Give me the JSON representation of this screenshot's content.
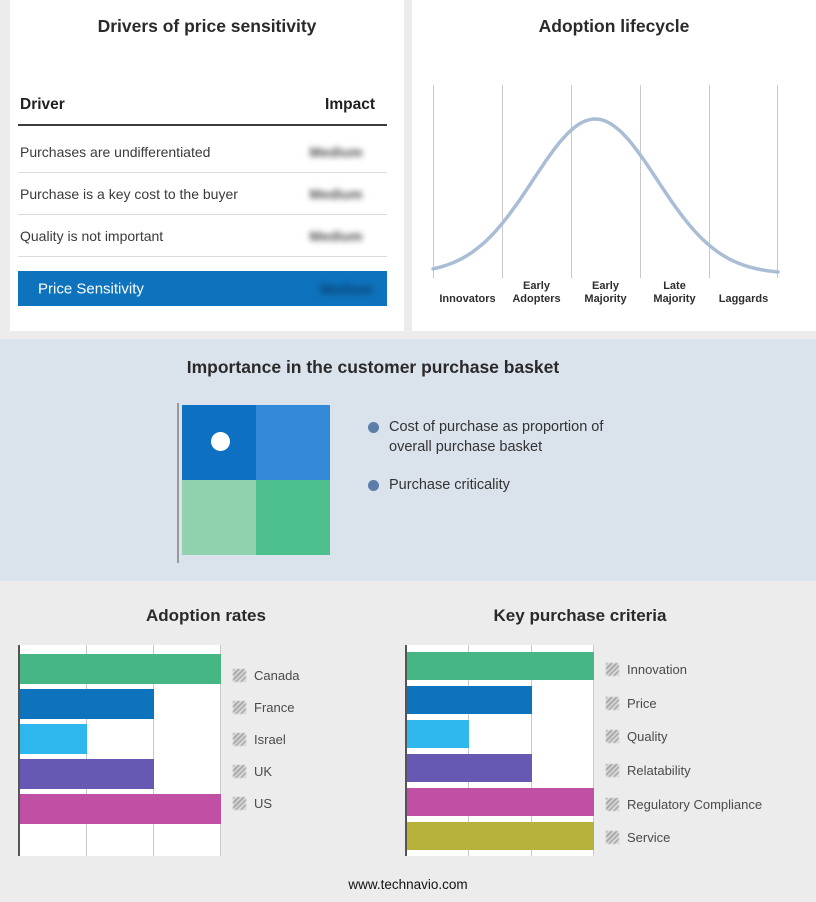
{
  "page": {
    "footer": "www.technavio.com",
    "background_color": "#ececec",
    "band_color": "#dae2ec"
  },
  "basket": {
    "title": "Importance in the customer purchase basket",
    "bullets": [
      "Cost of purchase as proportion of overall purchase basket",
      "Purchase criticality"
    ],
    "quadrant_colors": [
      "#0d70c2",
      "#3189d8",
      "#8fd2ad",
      "#4ec08d"
    ],
    "dot_color": "#ffffff",
    "bullet_color": "#5b7da9"
  },
  "chart_data": [
    {
      "type": "table",
      "title": "Drivers of price sensitivity",
      "columns": [
        "Driver",
        "Impact"
      ],
      "rows": [
        [
          "Purchases are undifferentiated",
          "Medium"
        ],
        [
          "Purchase is a key cost to the buyer",
          "Medium"
        ],
        [
          "Quality is not important",
          "Medium"
        ]
      ],
      "highlight_row": [
        "Price Sensitivity",
        "Medium"
      ],
      "highlight_color": "#0e73bd",
      "impact_values_blurred": true
    },
    {
      "type": "area",
      "title": "Adoption lifecycle",
      "categories": [
        "Innovators",
        "Early Adopters",
        "Early Majority",
        "Late Majority",
        "Laggards"
      ],
      "peak_category": "Early Majority",
      "curve": {
        "shape": "bell",
        "center": 0.47,
        "sigma": 0.18,
        "color": "#a9bdd5"
      },
      "grid": "vertical lines at category boundaries"
    },
    {
      "type": "bar",
      "title": "Adoption rates",
      "orientation": "horizontal",
      "categories": [
        "Canada",
        "France",
        "Israel",
        "UK",
        "US"
      ],
      "values": [
        3,
        2,
        1,
        2,
        3
      ],
      "xlim": [
        0,
        3
      ],
      "colors": [
        "#47b685",
        "#0e73bd",
        "#2eb8ee",
        "#6659b4",
        "#c050a4"
      ],
      "legend_position": "right"
    },
    {
      "type": "bar",
      "title": "Key purchase criteria",
      "orientation": "horizontal",
      "categories": [
        "Innovation",
        "Price",
        "Quality",
        "Relatability",
        "Regulatory Compliance",
        "Service"
      ],
      "values": [
        3,
        2,
        1,
        2,
        3,
        3
      ],
      "xlim": [
        0,
        3
      ],
      "colors": [
        "#47b685",
        "#0e73bd",
        "#2eb8ee",
        "#6659b4",
        "#c050a4",
        "#b7b13b"
      ],
      "legend_position": "right"
    }
  ]
}
